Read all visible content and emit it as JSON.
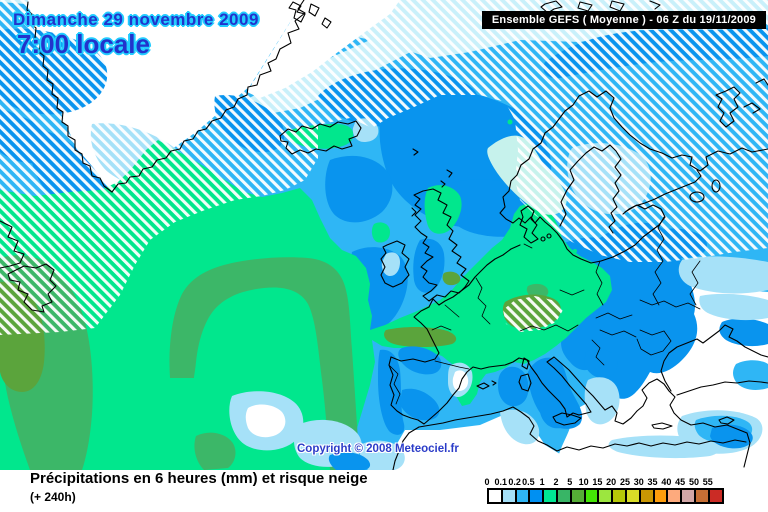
{
  "header": {
    "date_line1": "Dimanche 29 novembre 2009",
    "time_line": "7:00 locale",
    "model_info": "Ensemble GEFS ( Moyenne )  -  06 Z du 19/11/2009"
  },
  "map": {
    "copyright": "Copyright © 2008 Meteociel.fr"
  },
  "caption": {
    "title": "Précipitations en 6 heures (mm) et risque neige",
    "lead_time": "(+ 240h)"
  },
  "legend": {
    "unit": "mm",
    "labels": [
      "0",
      "0.1",
      "0.2",
      "0.5",
      "1",
      "2",
      "5",
      "10",
      "15",
      "20",
      "25",
      "30",
      "35",
      "40",
      "45",
      "50",
      "55"
    ],
    "colors": [
      "#ffffff",
      "#a4dff7",
      "#2fb6f5",
      "#0090f2",
      "#00e793",
      "#38b566",
      "#55ad36",
      "#44e605",
      "#9ce63f",
      "#b6c908",
      "#d9dd27",
      "#ca9703",
      "#fe9d0c",
      "#fdaa7d",
      "#d2a7a7",
      "#c66f35",
      "#cb2b25"
    ]
  },
  "palette": {
    "white": "#ffffff",
    "pale": "#c9f0fa",
    "sky": "#2fb6f5",
    "blue": "#0994ee",
    "lightblue": "#a6e1f8",
    "mint": "#c6f2ec",
    "green": "#01e78d",
    "mediumgreen": "#3cb768",
    "olive": "#5ba43c",
    "coast": "#000000"
  }
}
